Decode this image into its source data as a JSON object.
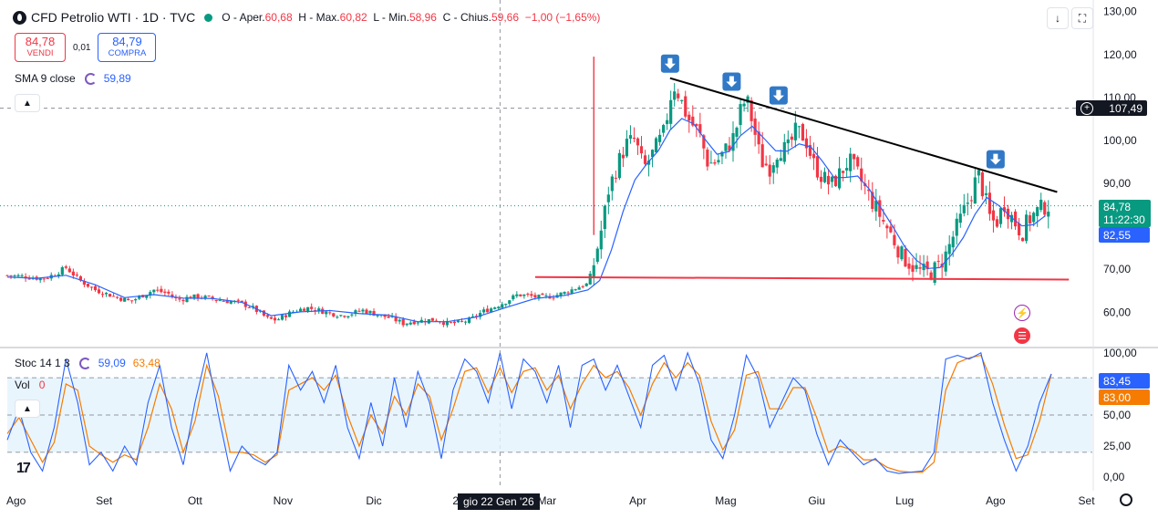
{
  "header": {
    "title": "CFD Petrolio WTI · 1D · TVC",
    "open_label": "O",
    "open_text": "Aper.",
    "open": "60,68",
    "high_label": "H",
    "high_text": "Max.",
    "high": "60,82",
    "low_label": "L",
    "low_text": "Min.",
    "low": "58,96",
    "close_label": "C",
    "close_text": "Chius.",
    "close": "59,66",
    "change": "−1,00 (−1,65%)"
  },
  "trade": {
    "sell_price": "84,78",
    "sell_label": "VENDI",
    "spread": "0,01",
    "buy_price": "84,79",
    "buy_label": "COMPRA"
  },
  "indicators": {
    "sma_name": "SMA 9 close",
    "sma_value": "59,89",
    "stoch_name": "Stoc 14 1 3",
    "stoch_k": "59,09",
    "stoch_d": "63,48",
    "vol_name": "Vol",
    "vol_value": "0"
  },
  "price_labels": {
    "crosshair_price": "107,49",
    "last_price": "84,78",
    "countdown": "11:22:30",
    "sma_price": "82,55",
    "stoch_k_last": "83,45",
    "stoch_d_last": "83,00"
  },
  "crosshair_date": "gio 22 Gen '26",
  "colors": {
    "up": "#089981",
    "down": "#f23645",
    "sma": "#2962ff",
    "stoch_k": "#2962ff",
    "stoch_d": "#f57c00",
    "resistance": "#000000",
    "support": "#f23645",
    "band": "#e3f2fd"
  },
  "chart_data": {
    "type": "candlestick",
    "price_axis": {
      "ticks": [
        "60,00",
        "70,00",
        "80,00",
        "90,00",
        "100,00",
        "110,00",
        "120,00",
        "130,00"
      ],
      "ylim": [
        52,
        131
      ]
    },
    "stoch_axis": {
      "ticks": [
        "0,00",
        "25,00",
        "50,00",
        "75,00",
        "100,00"
      ],
      "ylim": [
        -5,
        105
      ],
      "bands": [
        20,
        80
      ]
    },
    "time_axis": [
      "Ago",
      "Set",
      "Ott",
      "Nov",
      "Dic",
      "2026",
      "Mar",
      "Apr",
      "Mag",
      "Giu",
      "Lug",
      "Ago",
      "Set"
    ],
    "price_path": [
      [
        0,
        68.6
      ],
      [
        6,
        68.3
      ],
      [
        12,
        67.8
      ],
      [
        16,
        68.8
      ],
      [
        20,
        70.4
      ],
      [
        25,
        67.3
      ],
      [
        30,
        65.2
      ],
      [
        36,
        63.8
      ],
      [
        42,
        62.5
      ],
      [
        46,
        63.9
      ],
      [
        50,
        65.2
      ],
      [
        55,
        64.3
      ],
      [
        58,
        62.8
      ],
      [
        62,
        63.5
      ],
      [
        66,
        63.6
      ],
      [
        70,
        63.1
      ],
      [
        75,
        62.6
      ],
      [
        79,
        62.2
      ],
      [
        83,
        61.3
      ],
      [
        86,
        59.9
      ],
      [
        89,
        58.4
      ],
      [
        92,
        58.2
      ],
      [
        95,
        59.4
      ],
      [
        98,
        60.3
      ],
      [
        102,
        61.1
      ],
      [
        106,
        60.5
      ],
      [
        110,
        59.8
      ],
      [
        114,
        59.3
      ],
      [
        118,
        59.8
      ],
      [
        121,
        60.5
      ],
      [
        124,
        59.9
      ],
      [
        127,
        59.3
      ],
      [
        131,
        58.6
      ],
      [
        135,
        57.4
      ],
      [
        138,
        57.8
      ],
      [
        142,
        58.1
      ],
      [
        146,
        58.3
      ],
      [
        150,
        57.4
      ],
      [
        154,
        57.5
      ],
      [
        158,
        58.3
      ],
      [
        162,
        60.1
      ],
      [
        166,
        61.2
      ],
      [
        170,
        62.5
      ],
      [
        174,
        64.1
      ],
      [
        178,
        63.8
      ],
      [
        182,
        63.4
      ],
      [
        186,
        63.8
      ],
      [
        190,
        64.5
      ],
      [
        194,
        65.7
      ],
      [
        198,
        66.6
      ],
      [
        200,
        71.3
      ],
      [
        203,
        80.5
      ],
      [
        205,
        88.4
      ],
      [
        208,
        94.2
      ],
      [
        211,
        99.1
      ],
      [
        214,
        100.2
      ],
      [
        217,
        93.4
      ],
      [
        220,
        96.8
      ],
      [
        224,
        101.9
      ],
      [
        227,
        113.2
      ],
      [
        229,
        110.7
      ],
      [
        232,
        105.2
      ],
      [
        236,
        101.5
      ],
      [
        239,
        94.6
      ],
      [
        242,
        95.1
      ],
      [
        245,
        97.8
      ],
      [
        248,
        101.2
      ],
      [
        250,
        106.8
      ],
      [
        252,
        109.9
      ],
      [
        254,
        104.5
      ],
      [
        257,
        95.2
      ],
      [
        260,
        93.8
      ],
      [
        263,
        98.2
      ],
      [
        266,
        97.7
      ],
      [
        269,
        102.3
      ],
      [
        272,
        100.7
      ],
      [
        275,
        94.5
      ],
      [
        278,
        91.4
      ],
      [
        281,
        89.5
      ],
      [
        284,
        92.3
      ],
      [
        287,
        95.4
      ],
      [
        290,
        92.1
      ],
      [
        293,
        88.1
      ],
      [
        296,
        84.5
      ],
      [
        299,
        80.8
      ],
      [
        302,
        77.3
      ],
      [
        305,
        73.2
      ],
      [
        308,
        71.2
      ],
      [
        311,
        69.5
      ],
      [
        314,
        69.1
      ],
      [
        317,
        70.2
      ],
      [
        320,
        73.4
      ],
      [
        323,
        78.5
      ],
      [
        326,
        83.2
      ],
      [
        329,
        88.2
      ],
      [
        331,
        92.4
      ],
      [
        333,
        87.5
      ],
      [
        335,
        82.2
      ],
      [
        337,
        80.5
      ],
      [
        340,
        85.4
      ],
      [
        343,
        81.6
      ],
      [
        346,
        78.4
      ],
      [
        348,
        81.3
      ],
      [
        351,
        83.4
      ],
      [
        354,
        84.8
      ],
      [
        356,
        84.8
      ]
    ],
    "sma_path": [
      [
        0,
        68.2
      ],
      [
        10,
        67.9
      ],
      [
        20,
        68.6
      ],
      [
        30,
        66.4
      ],
      [
        40,
        63.4
      ],
      [
        50,
        64.1
      ],
      [
        60,
        63.3
      ],
      [
        70,
        63.2
      ],
      [
        80,
        62.3
      ],
      [
        90,
        59.2
      ],
      [
        100,
        60.1
      ],
      [
        110,
        60.4
      ],
      [
        120,
        59.7
      ],
      [
        130,
        59.3
      ],
      [
        140,
        57.8
      ],
      [
        150,
        57.8
      ],
      [
        160,
        58.9
      ],
      [
        170,
        61.1
      ],
      [
        180,
        63.2
      ],
      [
        190,
        63.9
      ],
      [
        198,
        65.2
      ],
      [
        202,
        67.4
      ],
      [
        206,
        74.5
      ],
      [
        210,
        83.5
      ],
      [
        214,
        90.8
      ],
      [
        218,
        94.5
      ],
      [
        222,
        97.6
      ],
      [
        226,
        102.4
      ],
      [
        230,
        105.1
      ],
      [
        234,
        103.9
      ],
      [
        238,
        100.2
      ],
      [
        242,
        96.8
      ],
      [
        246,
        97.4
      ],
      [
        250,
        101.1
      ],
      [
        254,
        103.3
      ],
      [
        258,
        100.5
      ],
      [
        262,
        97.6
      ],
      [
        266,
        97.5
      ],
      [
        270,
        99.2
      ],
      [
        274,
        98.5
      ],
      [
        278,
        95.1
      ],
      [
        282,
        91.3
      ],
      [
        286,
        91.4
      ],
      [
        290,
        91.7
      ],
      [
        294,
        88.6
      ],
      [
        298,
        84.2
      ],
      [
        302,
        79.9
      ],
      [
        306,
        75.3
      ],
      [
        310,
        72.1
      ],
      [
        314,
        70.2
      ],
      [
        318,
        70.4
      ],
      [
        322,
        73.4
      ],
      [
        326,
        77.4
      ],
      [
        330,
        82.8
      ],
      [
        334,
        86.7
      ],
      [
        338,
        84.9
      ],
      [
        342,
        82.3
      ],
      [
        346,
        80.1
      ],
      [
        350,
        80.4
      ],
      [
        354,
        82.5
      ]
    ],
    "resistance_line": [
      [
        226,
        114.5
      ],
      [
        358,
        88.0
      ]
    ],
    "support_line": [
      [
        180,
        68.2
      ],
      [
        362,
        67.6
      ]
    ],
    "stoch_k_path": [
      [
        0,
        30
      ],
      [
        4,
        55
      ],
      [
        8,
        20
      ],
      [
        12,
        5
      ],
      [
        16,
        40
      ],
      [
        20,
        95
      ],
      [
        24,
        60
      ],
      [
        28,
        10
      ],
      [
        32,
        20
      ],
      [
        36,
        5
      ],
      [
        40,
        25
      ],
      [
        44,
        10
      ],
      [
        48,
        60
      ],
      [
        52,
        90
      ],
      [
        56,
        40
      ],
      [
        60,
        10
      ],
      [
        64,
        60
      ],
      [
        68,
        100
      ],
      [
        72,
        50
      ],
      [
        76,
        5
      ],
      [
        80,
        25
      ],
      [
        84,
        15
      ],
      [
        88,
        10
      ],
      [
        92,
        20
      ],
      [
        96,
        90
      ],
      [
        100,
        70
      ],
      [
        104,
        85
      ],
      [
        108,
        60
      ],
      [
        112,
        90
      ],
      [
        116,
        40
      ],
      [
        120,
        15
      ],
      [
        124,
        60
      ],
      [
        128,
        25
      ],
      [
        132,
        80
      ],
      [
        136,
        40
      ],
      [
        140,
        85
      ],
      [
        144,
        60
      ],
      [
        148,
        15
      ],
      [
        152,
        70
      ],
      [
        156,
        95
      ],
      [
        160,
        85
      ],
      [
        164,
        60
      ],
      [
        168,
        100
      ],
      [
        172,
        55
      ],
      [
        176,
        95
      ],
      [
        180,
        85
      ],
      [
        184,
        60
      ],
      [
        188,
        90
      ],
      [
        192,
        40
      ],
      [
        196,
        90
      ],
      [
        200,
        95
      ],
      [
        204,
        70
      ],
      [
        208,
        90
      ],
      [
        212,
        65
      ],
      [
        216,
        40
      ],
      [
        220,
        90
      ],
      [
        224,
        98
      ],
      [
        228,
        70
      ],
      [
        232,
        100
      ],
      [
        236,
        75
      ],
      [
        240,
        30
      ],
      [
        244,
        15
      ],
      [
        248,
        50
      ],
      [
        252,
        98
      ],
      [
        256,
        80
      ],
      [
        260,
        40
      ],
      [
        264,
        60
      ],
      [
        268,
        80
      ],
      [
        272,
        70
      ],
      [
        276,
        35
      ],
      [
        280,
        10
      ],
      [
        284,
        30
      ],
      [
        288,
        20
      ],
      [
        292,
        10
      ],
      [
        296,
        15
      ],
      [
        300,
        5
      ],
      [
        304,
        3
      ],
      [
        308,
        4
      ],
      [
        312,
        5
      ],
      [
        316,
        20
      ],
      [
        320,
        95
      ],
      [
        324,
        98
      ],
      [
        328,
        95
      ],
      [
        332,
        100
      ],
      [
        336,
        60
      ],
      [
        340,
        30
      ],
      [
        344,
        5
      ],
      [
        348,
        25
      ],
      [
        352,
        60
      ],
      [
        356,
        83
      ]
    ],
    "stoch_d_path": [
      [
        0,
        35
      ],
      [
        4,
        48
      ],
      [
        8,
        30
      ],
      [
        12,
        12
      ],
      [
        16,
        28
      ],
      [
        20,
        75
      ],
      [
        24,
        70
      ],
      [
        28,
        25
      ],
      [
        32,
        18
      ],
      [
        36,
        12
      ],
      [
        40,
        18
      ],
      [
        44,
        14
      ],
      [
        48,
        40
      ],
      [
        52,
        75
      ],
      [
        56,
        55
      ],
      [
        60,
        20
      ],
      [
        64,
        45
      ],
      [
        68,
        90
      ],
      [
        72,
        65
      ],
      [
        76,
        20
      ],
      [
        80,
        20
      ],
      [
        84,
        18
      ],
      [
        88,
        12
      ],
      [
        92,
        18
      ],
      [
        96,
        70
      ],
      [
        100,
        75
      ],
      [
        104,
        80
      ],
      [
        108,
        70
      ],
      [
        112,
        82
      ],
      [
        116,
        50
      ],
      [
        120,
        25
      ],
      [
        124,
        50
      ],
      [
        128,
        35
      ],
      [
        132,
        65
      ],
      [
        136,
        50
      ],
      [
        140,
        75
      ],
      [
        144,
        65
      ],
      [
        148,
        30
      ],
      [
        152,
        55
      ],
      [
        156,
        85
      ],
      [
        160,
        88
      ],
      [
        164,
        68
      ],
      [
        168,
        88
      ],
      [
        172,
        68
      ],
      [
        176,
        85
      ],
      [
        180,
        88
      ],
      [
        184,
        70
      ],
      [
        188,
        82
      ],
      [
        192,
        55
      ],
      [
        196,
        75
      ],
      [
        200,
        90
      ],
      [
        204,
        80
      ],
      [
        208,
        85
      ],
      [
        212,
        72
      ],
      [
        216,
        50
      ],
      [
        220,
        75
      ],
      [
        224,
        92
      ],
      [
        228,
        80
      ],
      [
        232,
        92
      ],
      [
        236,
        82
      ],
      [
        240,
        45
      ],
      [
        244,
        22
      ],
      [
        248,
        38
      ],
      [
        252,
        82
      ],
      [
        256,
        85
      ],
      [
        260,
        55
      ],
      [
        264,
        55
      ],
      [
        268,
        72
      ],
      [
        272,
        72
      ],
      [
        276,
        48
      ],
      [
        280,
        20
      ],
      [
        284,
        25
      ],
      [
        288,
        22
      ],
      [
        292,
        14
      ],
      [
        296,
        14
      ],
      [
        300,
        8
      ],
      [
        304,
        5
      ],
      [
        308,
        4
      ],
      [
        312,
        4
      ],
      [
        316,
        12
      ],
      [
        320,
        70
      ],
      [
        324,
        92
      ],
      [
        328,
        96
      ],
      [
        332,
        98
      ],
      [
        336,
        75
      ],
      [
        340,
        42
      ],
      [
        344,
        15
      ],
      [
        348,
        18
      ],
      [
        352,
        45
      ],
      [
        356,
        83
      ]
    ],
    "arrow_markers_days": [
      226,
      247,
      263,
      337
    ]
  }
}
